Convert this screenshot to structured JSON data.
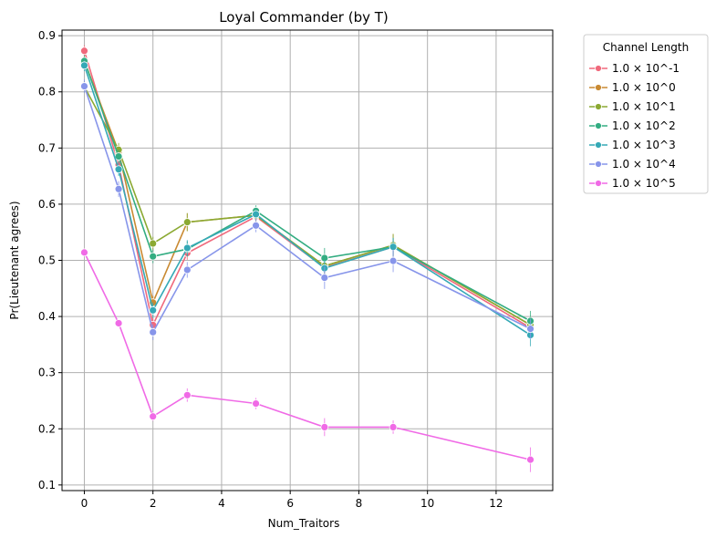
{
  "chart_data": {
    "type": "line",
    "title": "Loyal Commander (by T)",
    "xlabel": "Num_Traitors",
    "ylabel": "Pr(Lieutenant agrees)",
    "xlim": [
      -0.65,
      13.65
    ],
    "ylim": [
      0.09,
      0.91
    ],
    "xticks": [
      0,
      2,
      4,
      6,
      8,
      10,
      12
    ],
    "yticks": [
      0.1,
      0.2,
      0.3,
      0.4,
      0.5,
      0.6,
      0.7,
      0.8,
      0.9
    ],
    "xtick_labels": [
      "0",
      "2",
      "4",
      "6",
      "8",
      "10",
      "12"
    ],
    "ytick_labels": [
      "0.1",
      "0.2",
      "0.3",
      "0.4",
      "0.5",
      "0.6",
      "0.7",
      "0.8",
      "0.9"
    ],
    "grid": true,
    "legend": {
      "title": "Channel Length",
      "placement": "outside-right-top"
    },
    "x": [
      0,
      1,
      2,
      3,
      5,
      7,
      9,
      13
    ],
    "series": [
      {
        "name": "1.0 × 10^-1",
        "color": "#f0697c",
        "values": [
          0.873,
          0.67,
          0.385,
          0.513,
          0.578,
          0.487,
          0.524,
          0.38
        ],
        "err": [
          0.01,
          0.012,
          0.012,
          0.012,
          0.01,
          0.014,
          0.016,
          0.016
        ]
      },
      {
        "name": "1.0 × 10^0",
        "color": "#c98a32",
        "values": [
          0.855,
          0.693,
          0.425,
          0.568,
          0.58,
          0.49,
          0.527,
          0.385
        ],
        "err": [
          0.01,
          0.012,
          0.012,
          0.016,
          0.01,
          0.014,
          0.02,
          0.014
        ]
      },
      {
        "name": "1.0 × 10^1",
        "color": "#8ba932",
        "values": [
          0.809,
          0.697,
          0.53,
          0.568,
          0.58,
          0.49,
          0.527,
          0.385
        ],
        "err": [
          0.01,
          0.012,
          0.012,
          0.016,
          0.012,
          0.014,
          0.02,
          0.016
        ]
      },
      {
        "name": "1.0 × 10^2",
        "color": "#33ad82",
        "values": [
          0.855,
          0.685,
          0.507,
          0.52,
          0.588,
          0.504,
          0.524,
          0.392
        ],
        "err": [
          0.01,
          0.012,
          0.012,
          0.014,
          0.01,
          0.018,
          0.016,
          0.018
        ]
      },
      {
        "name": "1.0 × 10^3",
        "color": "#35a9b6",
        "values": [
          0.847,
          0.662,
          0.411,
          0.522,
          0.582,
          0.486,
          0.524,
          0.367
        ],
        "err": [
          0.01,
          0.012,
          0.014,
          0.014,
          0.01,
          0.014,
          0.016,
          0.02
        ]
      },
      {
        "name": "1.0 × 10^4",
        "color": "#8795ea",
        "values": [
          0.81,
          0.627,
          0.372,
          0.483,
          0.562,
          0.469,
          0.499,
          0.378
        ],
        "err": [
          0.012,
          0.014,
          0.014,
          0.014,
          0.012,
          0.02,
          0.02,
          0.018
        ]
      },
      {
        "name": "1.0 × 10^5",
        "color": "#f06ae6",
        "values": [
          0.514,
          0.388,
          0.222,
          0.26,
          0.245,
          0.203,
          0.203,
          0.145
        ],
        "err": [
          0.006,
          0.006,
          0.008,
          0.012,
          0.01,
          0.016,
          0.012,
          0.022
        ]
      }
    ]
  }
}
